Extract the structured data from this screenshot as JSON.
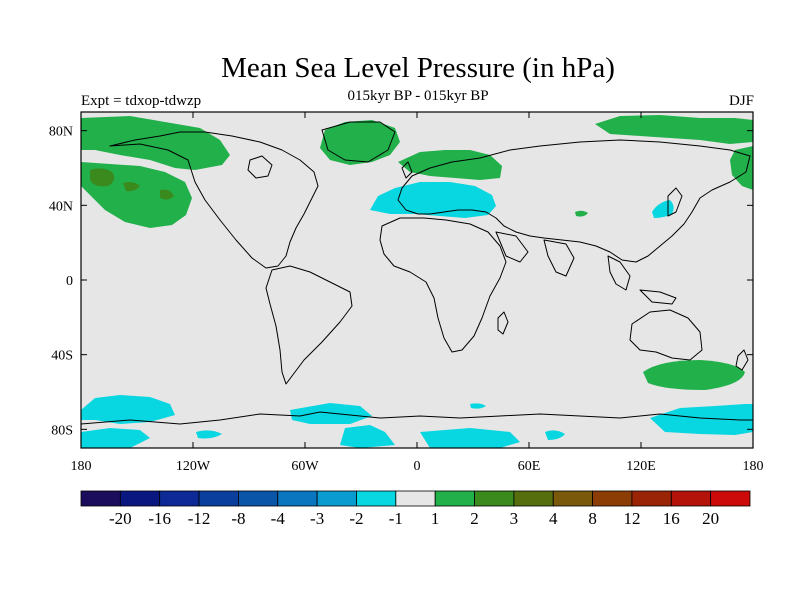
{
  "title": "Mean Sea Level Pressure (in hPa)",
  "subtitle": "015kyr BP - 015kyr BP",
  "left_label": "Expt = tdxop-tdwzp",
  "right_label": "DJF",
  "map": {
    "background": "#e6e6e6",
    "lon_range": [
      -180,
      180
    ],
    "lat_range": [
      -90,
      90
    ],
    "lon_ticks": [
      {
        "lon": -180,
        "label": "180"
      },
      {
        "lon": -120,
        "label": "120W"
      },
      {
        "lon": -60,
        "label": "60W"
      },
      {
        "lon": 0,
        "label": "0"
      },
      {
        "lon": 60,
        "label": "60E"
      },
      {
        "lon": 120,
        "label": "120E"
      },
      {
        "lon": 180,
        "label": "180"
      }
    ],
    "lat_ticks": [
      {
        "lat": 80,
        "label": "80N"
      },
      {
        "lat": 40,
        "label": "40N"
      },
      {
        "lat": 0,
        "label": "0"
      },
      {
        "lat": -40,
        "label": "40S"
      },
      {
        "lat": -80,
        "label": "80S"
      }
    ]
  },
  "colorbar": {
    "colors": [
      "#1b0d5c",
      "#0b1780",
      "#0d2a97",
      "#0b3f9e",
      "#0b55a8",
      "#0a76c0",
      "#0a9bd0",
      "#08d6e0",
      "#e6e6e6",
      "#21b04a",
      "#3b8a1e",
      "#566e0d",
      "#7a5a0a",
      "#8c3d06",
      "#9a2406",
      "#b31309",
      "#cc0a0a"
    ],
    "labels": [
      "-20",
      "-16",
      "-12",
      "-8",
      "-4",
      "-3",
      "-2",
      "-1",
      "1",
      "2",
      "3",
      "4",
      "8",
      "12",
      "16",
      "20"
    ]
  }
}
